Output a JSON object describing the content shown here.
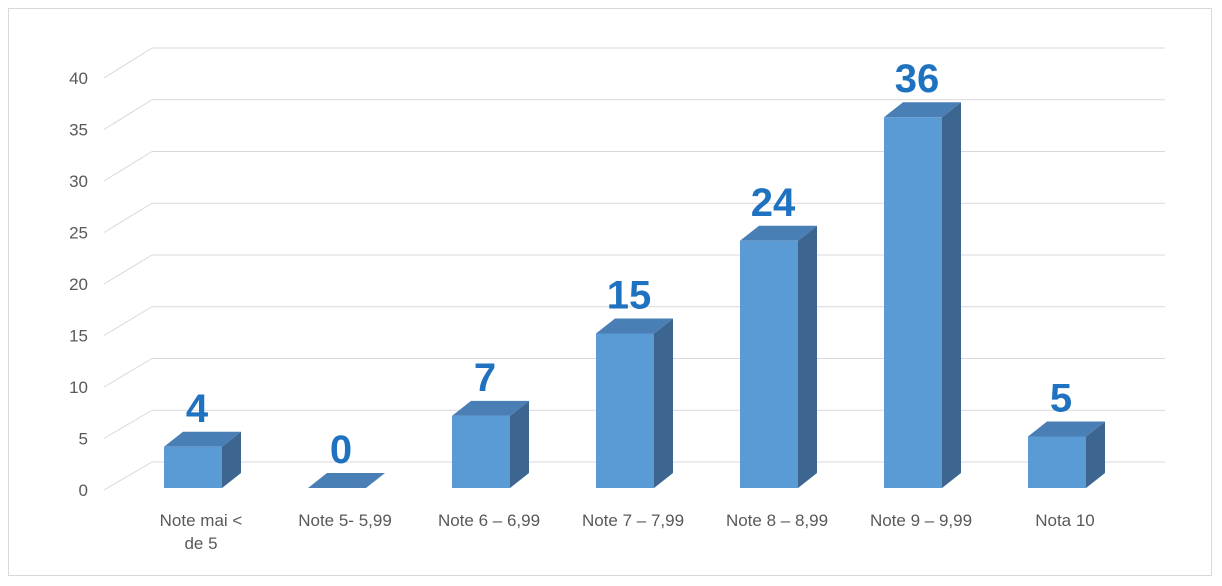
{
  "chart_data": {
    "type": "bar",
    "categories": [
      [
        "Note mai <",
        "de 5"
      ],
      [
        "Note 5- 5,99"
      ],
      [
        "Note 6 – 6,99"
      ],
      [
        "Note 7 – 7,99"
      ],
      [
        "Note 8 – 8,99"
      ],
      [
        "Note 9 – 9,99"
      ],
      [
        "Nota 10"
      ]
    ],
    "values": [
      4,
      0,
      7,
      15,
      24,
      36,
      5
    ],
    "data_labels": [
      "4",
      "0",
      "7",
      "15",
      "24",
      "36",
      "5"
    ],
    "yticks": [
      "0",
      "5",
      "10",
      "15",
      "20",
      "25",
      "30",
      "35",
      "40"
    ],
    "ylim": [
      0,
      40
    ],
    "title": "",
    "xlabel": "",
    "ylabel": "",
    "grid": true,
    "legend": "none",
    "style": "3d-column",
    "colors": {
      "bar_front": "#5b9bd5",
      "bar_side": "#3c6690",
      "bar_top": "#4a7fb5",
      "data_label": "#1f72c0",
      "gridline": "#d9d9d9",
      "axis_text": "#595959"
    }
  }
}
